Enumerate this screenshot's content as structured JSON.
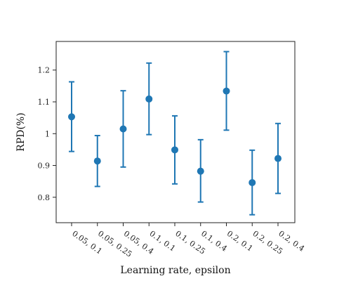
{
  "chart_data": {
    "type": "scatter",
    "title": "",
    "xlabel": "Learning rate, epsilon",
    "ylabel": "RPD(%)",
    "categories": [
      "0.05, 0.1",
      "0.05, 0.25",
      "0.05, 0.4",
      "0.1, 0.1",
      "0.1, 0.25",
      "0.1, 0.4",
      "0.2, 0.1",
      "0.2, 0.25",
      "0.2, 0.4"
    ],
    "values": [
      1.053,
      0.914,
      1.015,
      1.109,
      0.949,
      0.882,
      1.134,
      0.846,
      0.922
    ],
    "err_low": [
      0.944,
      0.834,
      0.895,
      0.997,
      0.842,
      0.785,
      1.011,
      0.745,
      0.812
    ],
    "err_high": [
      1.163,
      0.994,
      1.135,
      1.222,
      1.056,
      0.981,
      1.258,
      0.948,
      1.032
    ],
    "ylim": [
      0.72,
      1.29
    ],
    "yticks": [
      0.8,
      0.9,
      1.0,
      1.1,
      1.2
    ],
    "ytick_labels": [
      "0.8",
      "0.9",
      "1",
      "1.1",
      "1.2"
    ],
    "grid": false,
    "color": "#1f77b4"
  }
}
